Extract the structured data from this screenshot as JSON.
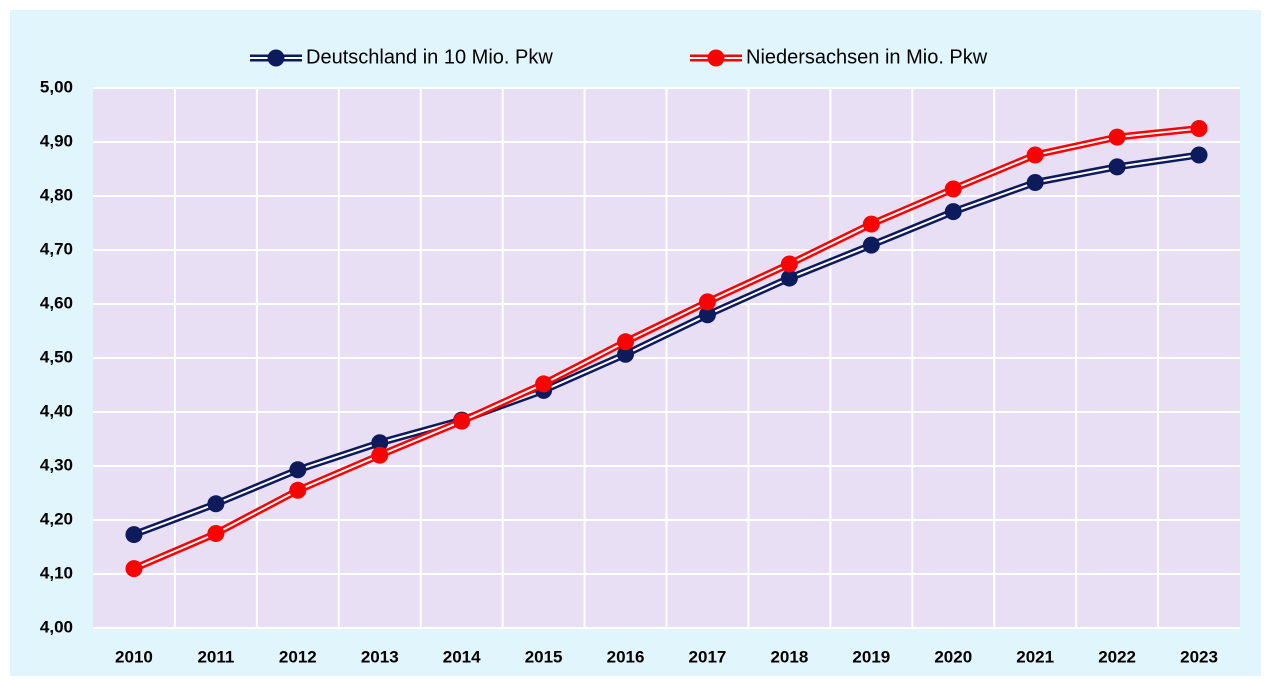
{
  "chart_data": {
    "type": "line",
    "categories": [
      "2010",
      "2011",
      "2012",
      "2013",
      "2014",
      "2015",
      "2016",
      "2017",
      "2018",
      "2019",
      "2020",
      "2021",
      "2022",
      "2023"
    ],
    "series": [
      {
        "name": "Deutschland in 10 Mio. Pkw",
        "color": "#0d1a5c",
        "values": [
          4.173,
          4.23,
          4.293,
          4.343,
          4.385,
          4.44,
          4.507,
          4.58,
          4.648,
          4.709,
          4.771,
          4.825,
          4.854,
          4.876
        ]
      },
      {
        "name": "Niedersachsen in Mio. Pkw",
        "color": "#ff0000",
        "values": [
          4.11,
          4.175,
          4.255,
          4.32,
          4.383,
          4.452,
          4.53,
          4.604,
          4.674,
          4.748,
          4.813,
          4.876,
          4.909,
          4.925
        ]
      }
    ],
    "ylim": [
      4.0,
      5.0
    ],
    "yticks": [
      {
        "value": 4.0,
        "label": "4,00"
      },
      {
        "value": 4.1,
        "label": "4,10"
      },
      {
        "value": 4.2,
        "label": "4,20"
      },
      {
        "value": 4.3,
        "label": "4,30"
      },
      {
        "value": 4.4,
        "label": "4,40"
      },
      {
        "value": 4.5,
        "label": "4,50"
      },
      {
        "value": 4.6,
        "label": "4,60"
      },
      {
        "value": 4.7,
        "label": "4,70"
      },
      {
        "value": 4.8,
        "label": "4,80"
      },
      {
        "value": 4.9,
        "label": "4,90"
      },
      {
        "value": 5.0,
        "label": "5,00"
      }
    ],
    "grid": true,
    "legend": "top"
  }
}
